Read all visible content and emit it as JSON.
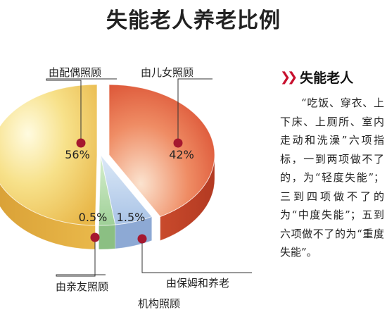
{
  "chart_data": {
    "type": "pie",
    "title": "失能老人养老比例",
    "categories": [
      "由配偶照顾",
      "由儿女照顾",
      "由保姆和养老机构照顾",
      "由亲友照顾"
    ],
    "values": [
      56,
      42,
      1.5,
      0.5
    ],
    "value_labels": [
      "56%",
      "42%",
      "1.5%",
      "0.5%"
    ],
    "callouts": {
      "spouse": "由配偶照顾",
      "children": "由儿女照顾",
      "relatives": "由亲友照顾",
      "nanny_line1": "由保姆和养老",
      "nanny_line2": "机构照顾"
    },
    "colors": [
      "#f3d35c",
      "#e45a39",
      "#b4cdea",
      "#a9d8a5"
    ],
    "legend": "none"
  },
  "side_panel": {
    "title": "失能老人",
    "body": "“吃饭、穿衣、上下床、上厕所、室内走动和洗澡”六项指标，一到两项做不了的，为“轻度失能”；三到四项做不了的为“中度失能”；五到六项做不了的为“重度失能”。"
  }
}
